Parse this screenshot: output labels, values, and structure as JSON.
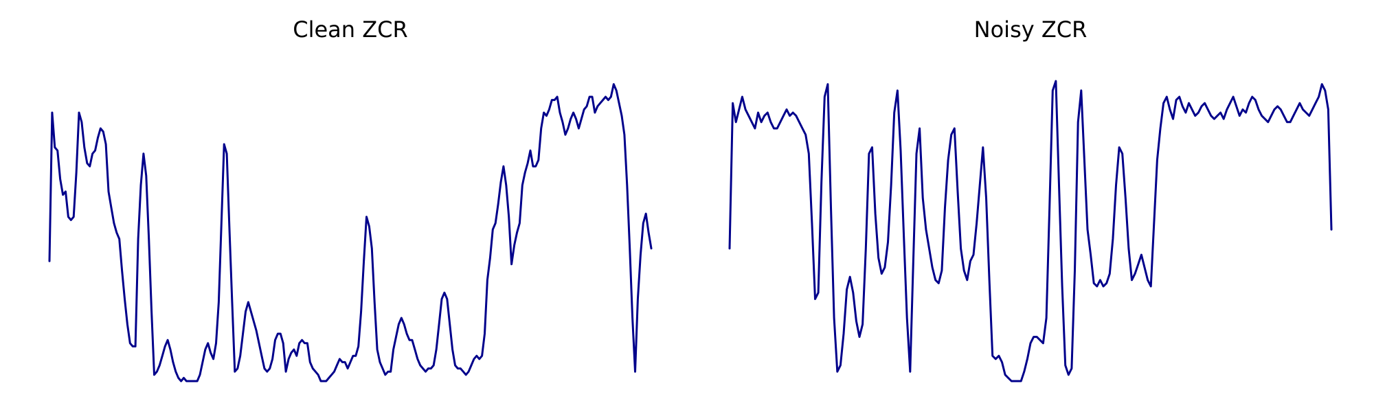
{
  "chart_data": [
    {
      "type": "line",
      "title": "Clean ZCR",
      "xlabel": "",
      "ylabel": "",
      "ylim": [
        0,
        1
      ],
      "grid": false,
      "axes_visible": false,
      "series": [
        {
          "color": "#00008b",
          "values": [
            0.38,
            0.85,
            0.74,
            0.73,
            0.64,
            0.59,
            0.6,
            0.52,
            0.51,
            0.52,
            0.66,
            0.85,
            0.82,
            0.74,
            0.69,
            0.68,
            0.72,
            0.73,
            0.77,
            0.8,
            0.79,
            0.75,
            0.6,
            0.55,
            0.5,
            0.47,
            0.45,
            0.35,
            0.26,
            0.18,
            0.12,
            0.11,
            0.11,
            0.45,
            0.62,
            0.72,
            0.65,
            0.45,
            0.22,
            0.02,
            0.03,
            0.05,
            0.08,
            0.11,
            0.13,
            0.1,
            0.06,
            0.03,
            0.01,
            0.0,
            0.01,
            0.0,
            0.0,
            0.0,
            0.0,
            0.0,
            0.02,
            0.06,
            0.1,
            0.12,
            0.09,
            0.07,
            0.12,
            0.25,
            0.5,
            0.75,
            0.72,
            0.48,
            0.25,
            0.03,
            0.04,
            0.08,
            0.15,
            0.22,
            0.25,
            0.22,
            0.19,
            0.16,
            0.12,
            0.08,
            0.04,
            0.03,
            0.04,
            0.07,
            0.13,
            0.15,
            0.15,
            0.12,
            0.03,
            0.07,
            0.09,
            0.1,
            0.08,
            0.12,
            0.13,
            0.12,
            0.12,
            0.06,
            0.04,
            0.03,
            0.02,
            0.0,
            0.0,
            0.0,
            0.01,
            0.02,
            0.03,
            0.05,
            0.07,
            0.06,
            0.06,
            0.04,
            0.06,
            0.08,
            0.08,
            0.11,
            0.22,
            0.38,
            0.52,
            0.49,
            0.42,
            0.25,
            0.1,
            0.06,
            0.04,
            0.02,
            0.03,
            0.03,
            0.1,
            0.14,
            0.18,
            0.2,
            0.18,
            0.15,
            0.13,
            0.13,
            0.1,
            0.07,
            0.05,
            0.04,
            0.03,
            0.04,
            0.04,
            0.05,
            0.1,
            0.18,
            0.26,
            0.28,
            0.26,
            0.18,
            0.1,
            0.05,
            0.04,
            0.04,
            0.03,
            0.02,
            0.03,
            0.05,
            0.07,
            0.08,
            0.07,
            0.08,
            0.15,
            0.32,
            0.39,
            0.48,
            0.5,
            0.56,
            0.63,
            0.68,
            0.62,
            0.52,
            0.37,
            0.43,
            0.47,
            0.5,
            0.62,
            0.66,
            0.69,
            0.73,
            0.68,
            0.68,
            0.7,
            0.8,
            0.85,
            0.84,
            0.86,
            0.89,
            0.89,
            0.9,
            0.85,
            0.82,
            0.78,
            0.8,
            0.83,
            0.85,
            0.83,
            0.8,
            0.83,
            0.86,
            0.87,
            0.9,
            0.9,
            0.85,
            0.87,
            0.88,
            0.89,
            0.9,
            0.89,
            0.9,
            0.94,
            0.92,
            0.88,
            0.84,
            0.78,
            0.62,
            0.42,
            0.2,
            0.03,
            0.26,
            0.4,
            0.5,
            0.53,
            0.47,
            0.42
          ]
        }
      ]
    },
    {
      "type": "line",
      "title": "Noisy ZCR",
      "xlabel": "",
      "ylabel": "",
      "ylim": [
        0,
        1
      ],
      "grid": false,
      "axes_visible": false,
      "series": [
        {
          "color": "#00008b",
          "values": [
            0.42,
            0.88,
            0.82,
            0.86,
            0.9,
            0.86,
            0.84,
            0.82,
            0.8,
            0.85,
            0.82,
            0.84,
            0.85,
            0.82,
            0.8,
            0.8,
            0.82,
            0.84,
            0.86,
            0.84,
            0.85,
            0.84,
            0.82,
            0.8,
            0.78,
            0.72,
            0.5,
            0.26,
            0.28,
            0.63,
            0.9,
            0.94,
            0.55,
            0.2,
            0.03,
            0.05,
            0.15,
            0.29,
            0.33,
            0.28,
            0.19,
            0.14,
            0.18,
            0.42,
            0.72,
            0.74,
            0.53,
            0.39,
            0.34,
            0.36,
            0.44,
            0.62,
            0.85,
            0.92,
            0.73,
            0.46,
            0.2,
            0.03,
            0.38,
            0.72,
            0.8,
            0.58,
            0.48,
            0.42,
            0.36,
            0.32,
            0.31,
            0.35,
            0.55,
            0.7,
            0.78,
            0.8,
            0.6,
            0.42,
            0.35,
            0.32,
            0.38,
            0.4,
            0.5,
            0.62,
            0.74,
            0.58,
            0.32,
            0.08,
            0.07,
            0.08,
            0.06,
            0.02,
            0.01,
            0.0,
            0.0,
            0.0,
            0.0,
            0.03,
            0.07,
            0.12,
            0.14,
            0.14,
            0.13,
            0.12,
            0.2,
            0.55,
            0.92,
            0.95,
            0.62,
            0.3,
            0.05,
            0.02,
            0.04,
            0.35,
            0.82,
            0.92,
            0.7,
            0.48,
            0.4,
            0.31,
            0.3,
            0.32,
            0.3,
            0.31,
            0.34,
            0.45,
            0.62,
            0.74,
            0.72,
            0.58,
            0.42,
            0.32,
            0.34,
            0.37,
            0.4,
            0.36,
            0.32,
            0.3,
            0.5,
            0.7,
            0.8,
            0.88,
            0.9,
            0.86,
            0.83,
            0.89,
            0.9,
            0.87,
            0.85,
            0.88,
            0.86,
            0.84,
            0.85,
            0.87,
            0.88,
            0.86,
            0.84,
            0.83,
            0.84,
            0.85,
            0.83,
            0.86,
            0.88,
            0.9,
            0.87,
            0.84,
            0.86,
            0.85,
            0.88,
            0.9,
            0.89,
            0.86,
            0.84,
            0.83,
            0.82,
            0.84,
            0.86,
            0.87,
            0.86,
            0.84,
            0.82,
            0.82,
            0.84,
            0.86,
            0.88,
            0.86,
            0.85,
            0.84,
            0.86,
            0.88,
            0.9,
            0.94,
            0.92,
            0.86,
            0.48
          ]
        }
      ]
    }
  ]
}
